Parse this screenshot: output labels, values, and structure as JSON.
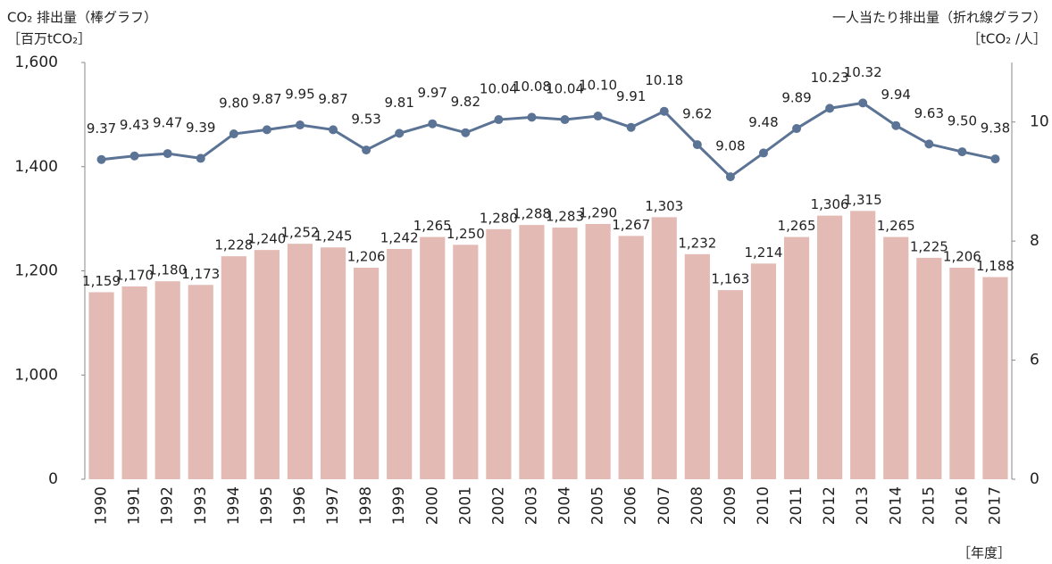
{
  "chart_data": {
    "type": "bar_line",
    "y_title": "CO₂ 排出量（棒グラフ）",
    "y_unit": "［百万tCO₂］",
    "y2_title": "一人当たり排出量（折れ線グラフ）",
    "y2_unit": "［tCO₂ /人］",
    "x_unit": "［年度］",
    "axis_break": true,
    "categories": [
      "1990",
      "1991",
      "1992",
      "1993",
      "1994",
      "1995",
      "1996",
      "1997",
      "1998",
      "1999",
      "2000",
      "2001",
      "2002",
      "2003",
      "2004",
      "2005",
      "2006",
      "2007",
      "2008",
      "2009",
      "2010",
      "2011",
      "2012",
      "2013",
      "2014",
      "2015",
      "2016",
      "2017"
    ],
    "series": [
      {
        "type": "bar",
        "axis": "y",
        "color": "#e3bab4",
        "values": [
          1159,
          1170,
          1180,
          1173,
          1228,
          1240,
          1252,
          1245,
          1206,
          1242,
          1265,
          1250,
          1280,
          1288,
          1283,
          1290,
          1267,
          1303,
          1232,
          1163,
          1214,
          1265,
          1306,
          1315,
          1265,
          1225,
          1206,
          1188
        ],
        "value_labels": [
          "1,159",
          "1,170",
          "1,180",
          "1,173",
          "1,228",
          "1,240",
          "1,252",
          "1,245",
          "1,206",
          "1,242",
          "1,265",
          "1,250",
          "1,280",
          "1,288",
          "1,283",
          "1,290",
          "1,267",
          "1,303",
          "1,232",
          "1,163",
          "1,214",
          "1,265",
          "1,306",
          "1,315",
          "1,265",
          "1,225",
          "1,206",
          "1,188"
        ]
      },
      {
        "type": "line",
        "axis": "y2",
        "color": "#5b7395",
        "values": [
          9.37,
          9.43,
          9.47,
          9.39,
          9.8,
          9.87,
          9.95,
          9.87,
          9.53,
          9.81,
          9.97,
          9.82,
          10.04,
          10.08,
          10.04,
          10.1,
          9.91,
          10.18,
          9.62,
          9.08,
          9.48,
          9.89,
          10.23,
          10.32,
          9.94,
          9.63,
          9.5,
          9.38
        ],
        "value_labels": [
          "9.37",
          "9.43",
          "9.47",
          "9.39",
          "9.80",
          "9.87",
          "9.95",
          "9.87",
          "9.53",
          "9.81",
          "9.97",
          "9.82",
          "10.04",
          "10.08",
          "10.04",
          "10.10",
          "9.91",
          "10.18",
          "9.62",
          "9.08",
          "9.48",
          "9.89",
          "10.23",
          "10.32",
          "9.94",
          "9.63",
          "9.50",
          "9.38"
        ]
      }
    ],
    "ylim": [
      0,
      1600
    ],
    "yticks": [
      0,
      {
        "value": 1000,
        "label": "1,000"
      },
      {
        "value": 1200,
        "label": "1,200"
      },
      {
        "value": 1400,
        "label": "1,400"
      },
      {
        "value": 1600,
        "label": "1,600"
      }
    ],
    "y2lim": [
      0,
      11
    ],
    "y2ticks": [
      0,
      6,
      8,
      10
    ]
  }
}
